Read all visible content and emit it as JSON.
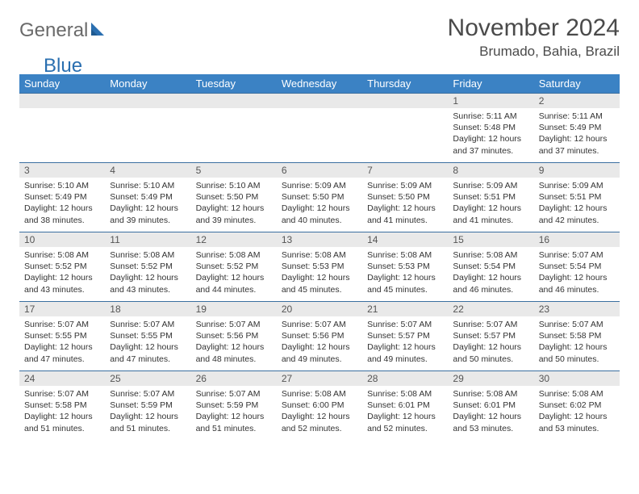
{
  "logo": {
    "word1": "General",
    "word2": "Blue"
  },
  "title": "November 2024",
  "location": "Brumado, Bahia, Brazil",
  "colors": {
    "header_bg": "#3b82c4",
    "header_text": "#ffffff",
    "row_border": "#3b6fa0",
    "daynum_bg": "#e9e9e9",
    "text": "#333333",
    "logo_gray": "#6a6a6a",
    "logo_blue": "#2a6fb0"
  },
  "day_headers": [
    "Sunday",
    "Monday",
    "Tuesday",
    "Wednesday",
    "Thursday",
    "Friday",
    "Saturday"
  ],
  "weeks": [
    [
      null,
      null,
      null,
      null,
      null,
      {
        "n": "1",
        "sr": "5:11 AM",
        "ss": "5:48 PM",
        "dl": "12 hours and 37 minutes."
      },
      {
        "n": "2",
        "sr": "5:11 AM",
        "ss": "5:49 PM",
        "dl": "12 hours and 37 minutes."
      }
    ],
    [
      {
        "n": "3",
        "sr": "5:10 AM",
        "ss": "5:49 PM",
        "dl": "12 hours and 38 minutes."
      },
      {
        "n": "4",
        "sr": "5:10 AM",
        "ss": "5:49 PM",
        "dl": "12 hours and 39 minutes."
      },
      {
        "n": "5",
        "sr": "5:10 AM",
        "ss": "5:50 PM",
        "dl": "12 hours and 39 minutes."
      },
      {
        "n": "6",
        "sr": "5:09 AM",
        "ss": "5:50 PM",
        "dl": "12 hours and 40 minutes."
      },
      {
        "n": "7",
        "sr": "5:09 AM",
        "ss": "5:50 PM",
        "dl": "12 hours and 41 minutes."
      },
      {
        "n": "8",
        "sr": "5:09 AM",
        "ss": "5:51 PM",
        "dl": "12 hours and 41 minutes."
      },
      {
        "n": "9",
        "sr": "5:09 AM",
        "ss": "5:51 PM",
        "dl": "12 hours and 42 minutes."
      }
    ],
    [
      {
        "n": "10",
        "sr": "5:08 AM",
        "ss": "5:52 PM",
        "dl": "12 hours and 43 minutes."
      },
      {
        "n": "11",
        "sr": "5:08 AM",
        "ss": "5:52 PM",
        "dl": "12 hours and 43 minutes."
      },
      {
        "n": "12",
        "sr": "5:08 AM",
        "ss": "5:52 PM",
        "dl": "12 hours and 44 minutes."
      },
      {
        "n": "13",
        "sr": "5:08 AM",
        "ss": "5:53 PM",
        "dl": "12 hours and 45 minutes."
      },
      {
        "n": "14",
        "sr": "5:08 AM",
        "ss": "5:53 PM",
        "dl": "12 hours and 45 minutes."
      },
      {
        "n": "15",
        "sr": "5:08 AM",
        "ss": "5:54 PM",
        "dl": "12 hours and 46 minutes."
      },
      {
        "n": "16",
        "sr": "5:07 AM",
        "ss": "5:54 PM",
        "dl": "12 hours and 46 minutes."
      }
    ],
    [
      {
        "n": "17",
        "sr": "5:07 AM",
        "ss": "5:55 PM",
        "dl": "12 hours and 47 minutes."
      },
      {
        "n": "18",
        "sr": "5:07 AM",
        "ss": "5:55 PM",
        "dl": "12 hours and 47 minutes."
      },
      {
        "n": "19",
        "sr": "5:07 AM",
        "ss": "5:56 PM",
        "dl": "12 hours and 48 minutes."
      },
      {
        "n": "20",
        "sr": "5:07 AM",
        "ss": "5:56 PM",
        "dl": "12 hours and 49 minutes."
      },
      {
        "n": "21",
        "sr": "5:07 AM",
        "ss": "5:57 PM",
        "dl": "12 hours and 49 minutes."
      },
      {
        "n": "22",
        "sr": "5:07 AM",
        "ss": "5:57 PM",
        "dl": "12 hours and 50 minutes."
      },
      {
        "n": "23",
        "sr": "5:07 AM",
        "ss": "5:58 PM",
        "dl": "12 hours and 50 minutes."
      }
    ],
    [
      {
        "n": "24",
        "sr": "5:07 AM",
        "ss": "5:58 PM",
        "dl": "12 hours and 51 minutes."
      },
      {
        "n": "25",
        "sr": "5:07 AM",
        "ss": "5:59 PM",
        "dl": "12 hours and 51 minutes."
      },
      {
        "n": "26",
        "sr": "5:07 AM",
        "ss": "5:59 PM",
        "dl": "12 hours and 51 minutes."
      },
      {
        "n": "27",
        "sr": "5:08 AM",
        "ss": "6:00 PM",
        "dl": "12 hours and 52 minutes."
      },
      {
        "n": "28",
        "sr": "5:08 AM",
        "ss": "6:01 PM",
        "dl": "12 hours and 52 minutes."
      },
      {
        "n": "29",
        "sr": "5:08 AM",
        "ss": "6:01 PM",
        "dl": "12 hours and 53 minutes."
      },
      {
        "n": "30",
        "sr": "5:08 AM",
        "ss": "6:02 PM",
        "dl": "12 hours and 53 minutes."
      }
    ]
  ],
  "labels": {
    "sunrise": "Sunrise: ",
    "sunset": "Sunset: ",
    "daylight": "Daylight: "
  }
}
